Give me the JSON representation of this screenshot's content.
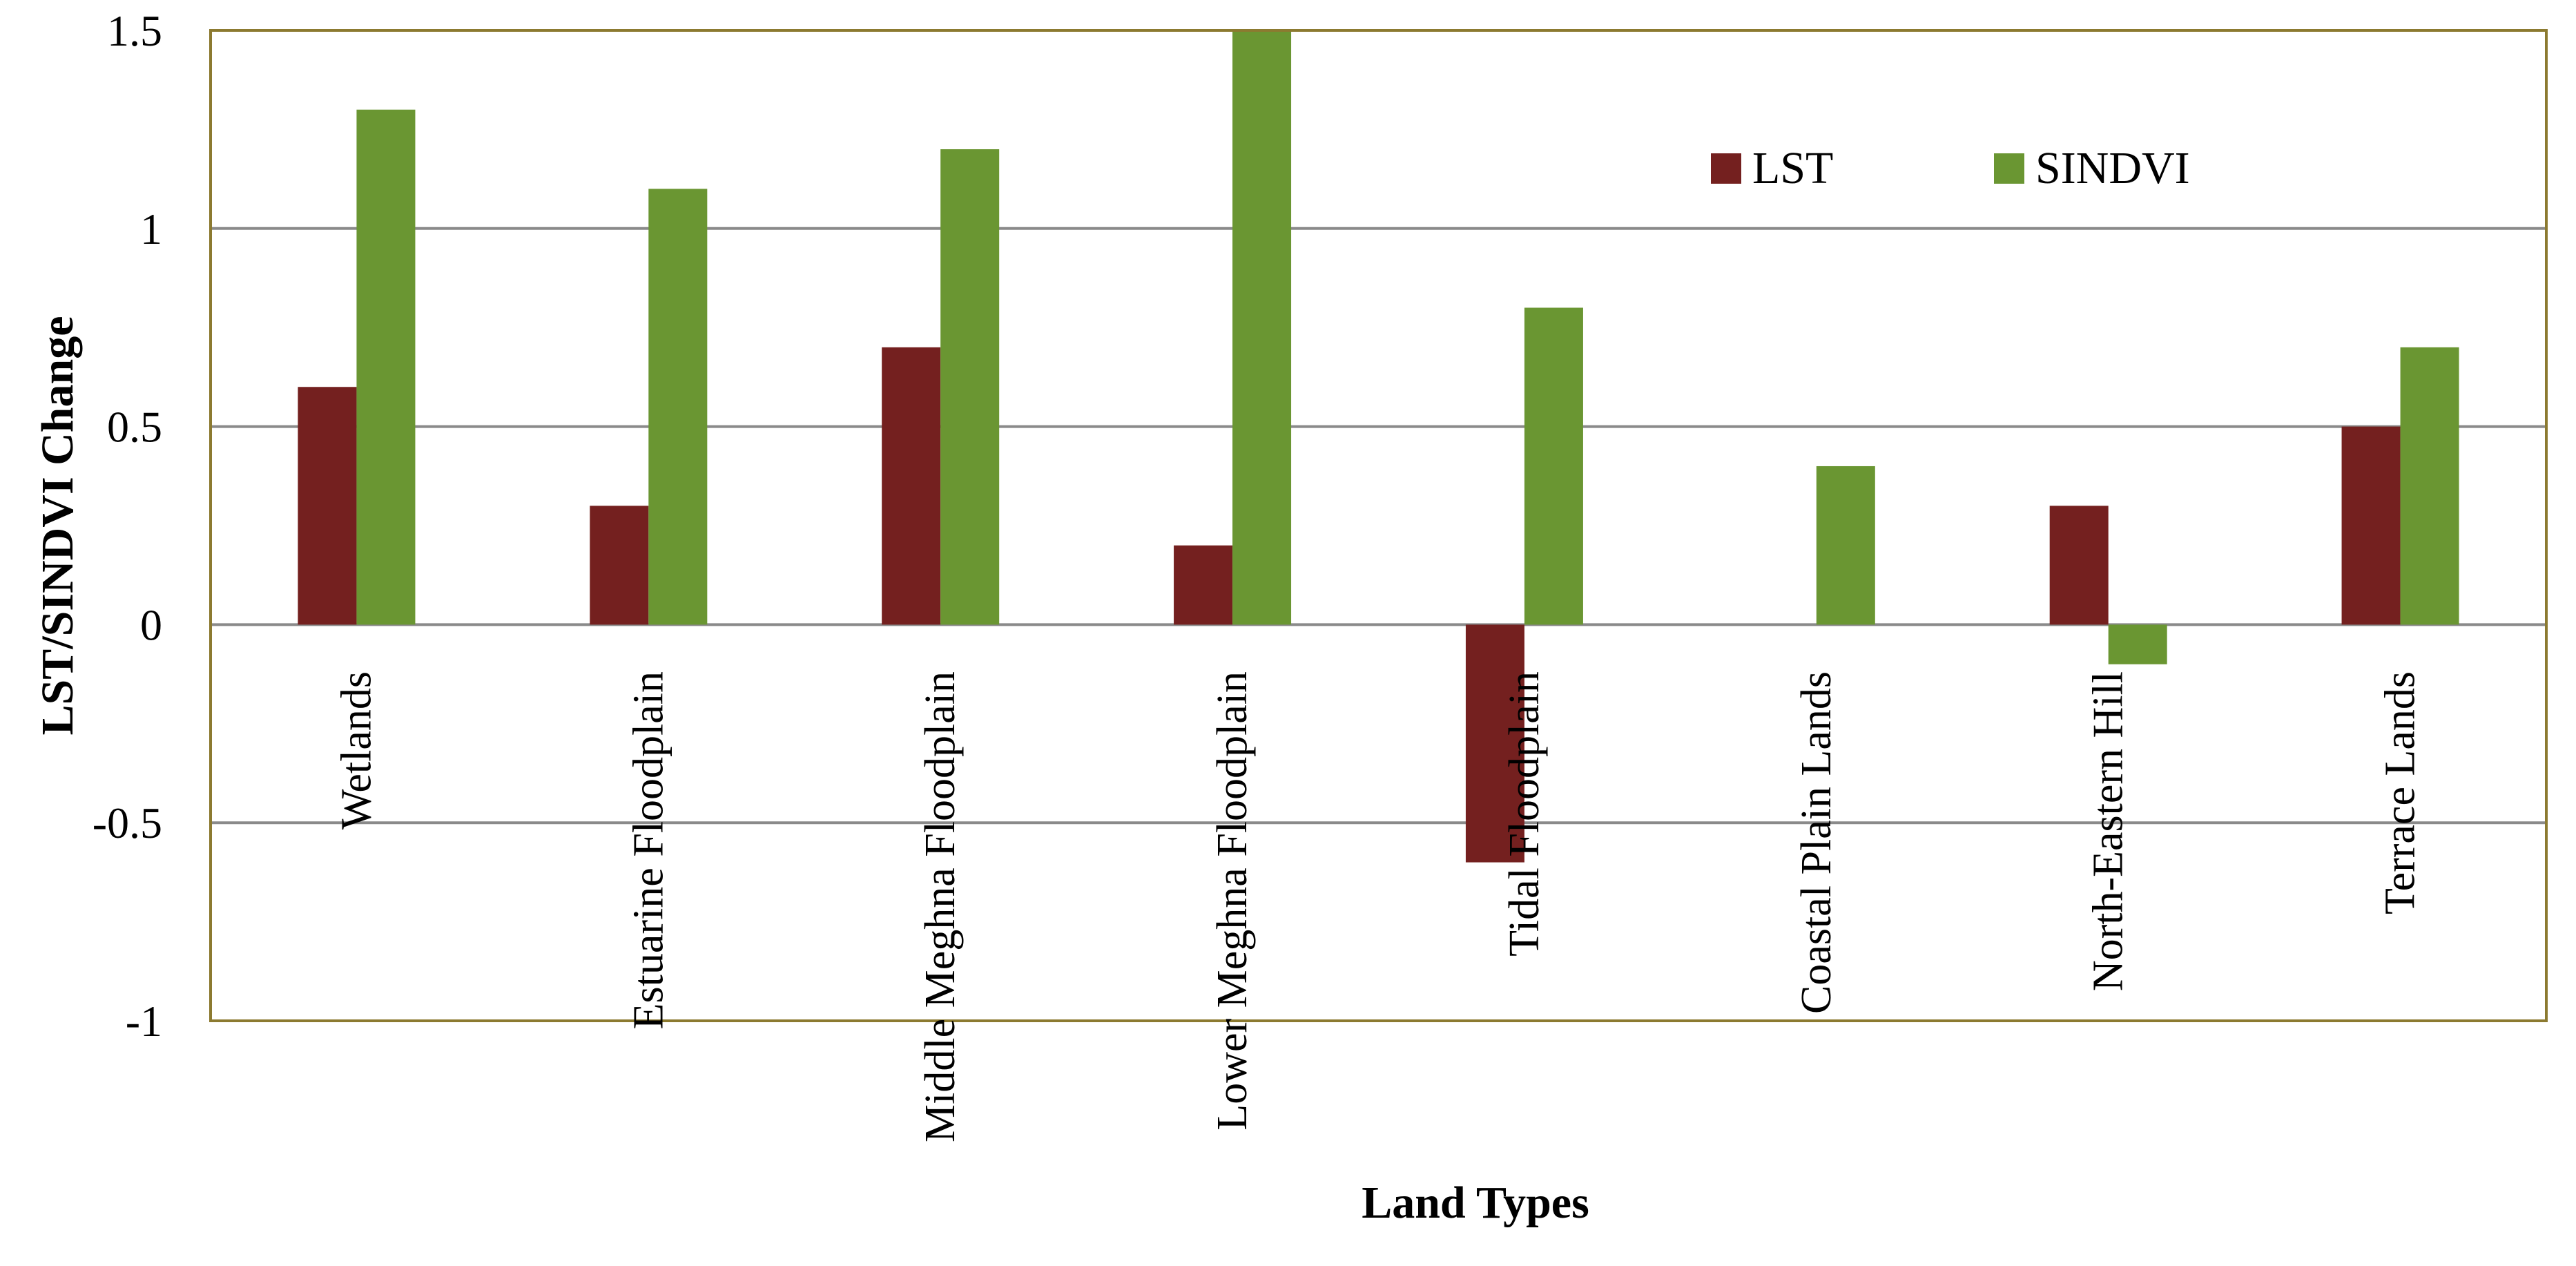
{
  "chart_data": {
    "type": "bar",
    "title": "",
    "xlabel": "Land Types",
    "ylabel": "LST/SINDVI Change",
    "ylim": [
      -1,
      1.5
    ],
    "yticks": [
      1.5,
      1,
      0.5,
      0,
      -0.5,
      -1
    ],
    "ytick_labels": [
      "1.5",
      "1",
      "0.5",
      "0",
      "-0.5",
      "-1"
    ],
    "grid": true,
    "legend_position": "top-right",
    "categories": [
      "Wetlands",
      "Estuarine Floodplain",
      "Middle Meghna Floodplain",
      "Lower Meghna Floodplain",
      "Tidal Floodplain",
      "Coastal Plain Lands",
      "North-Eastern Hill",
      "Terrace Lands"
    ],
    "series": [
      {
        "name": "LST",
        "color": "#74201F",
        "values": [
          0.6,
          0.3,
          0.7,
          0.2,
          -0.6,
          0,
          0.3,
          0.5
        ]
      },
      {
        "name": "SINDVI",
        "color": "#6A9632",
        "values": [
          1.3,
          1.1,
          1.2,
          1.5,
          0.8,
          0.4,
          -0.1,
          0.7
        ]
      }
    ],
    "colors": {
      "border": "#8C7A30",
      "grid": "#8A8A8A",
      "zero_line": "#8A8A8A"
    }
  }
}
